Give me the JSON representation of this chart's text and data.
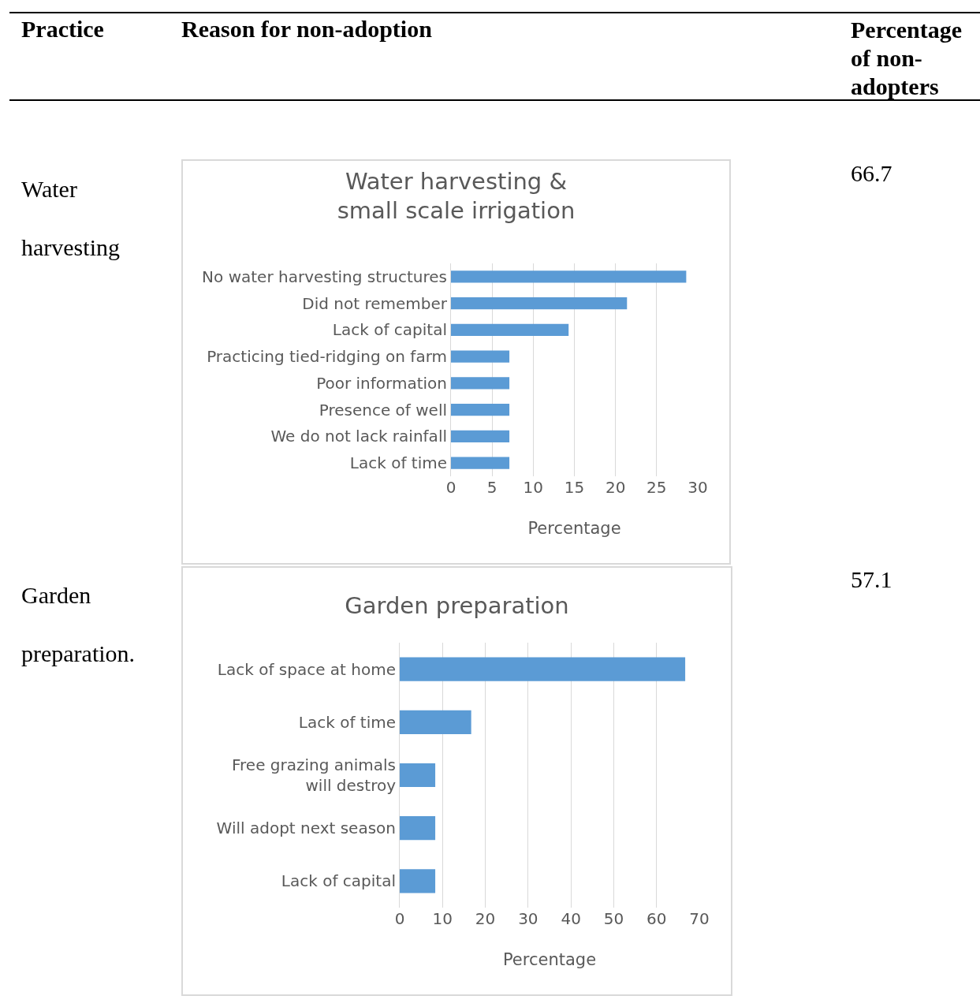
{
  "chart_data": [
    {
      "type": "other",
      "annotations": [
        "Practice",
        "Reason for non-adoption",
        "Percentage of non-adopters"
      ]
    },
    {
      "type": "bar",
      "orientation": "horizontal",
      "title": "Water harvesting & small scale irrigation",
      "xlabel": "Percentage",
      "categories": [
        "No water harvesting structures",
        "Did not remember",
        "Lack of capital",
        "Practicing tied-ridging on farm",
        "Poor information",
        "Presence of well",
        "We do not lack rainfall",
        "Lack of time"
      ],
      "values": [
        28.6,
        21.4,
        14.3,
        7.1,
        7.1,
        7.1,
        7.1,
        7.1
      ],
      "color": "#5b9bd5",
      "xlim": [
        0,
        30
      ],
      "xticks": [
        0,
        5,
        10,
        15,
        20,
        25,
        30
      ],
      "grid": "x",
      "legend": false,
      "annotations": [
        "Water harvesting",
        "66.7"
      ]
    },
    {
      "type": "bar",
      "orientation": "horizontal",
      "title": "Garden preparation",
      "xlabel": "Percentage",
      "categories": [
        "Lack of space at home",
        "Lack of time",
        "Free grazing animals will destroy",
        "Will adopt next season",
        "Lack of capital"
      ],
      "values": [
        66.7,
        16.7,
        8.3,
        8.3,
        8.3
      ],
      "color": "#5b9bd5",
      "xlim": [
        0,
        70
      ],
      "xticks": [
        0,
        10,
        20,
        30,
        40,
        50,
        60,
        70
      ],
      "grid": "x",
      "legend": false,
      "annotations": [
        "Garden preparation.",
        "57.1"
      ]
    }
  ]
}
